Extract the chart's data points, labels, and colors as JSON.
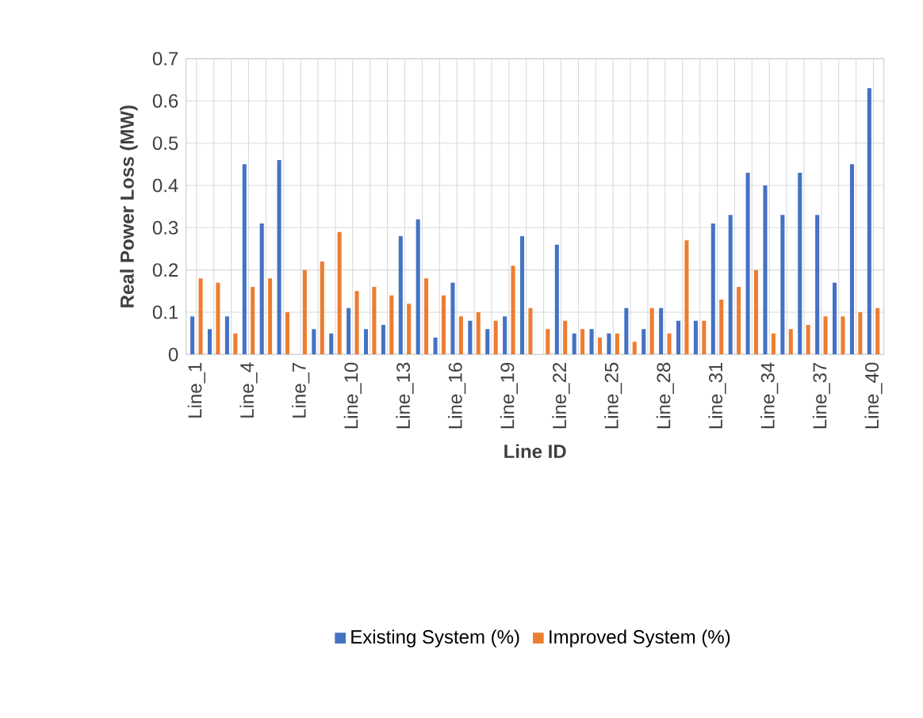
{
  "chart_data": {
    "type": "bar",
    "xlabel": "Line ID",
    "ylabel": "Real Power Loss (MW)",
    "categories": [
      "Line_1",
      null,
      null,
      "Line_4",
      null,
      null,
      "Line_7",
      null,
      null,
      "Line_10",
      null,
      null,
      "Line_13",
      null,
      null,
      "Line_16",
      null,
      null,
      "Line_19",
      null,
      null,
      "Line_22",
      null,
      null,
      "Line_25",
      null,
      null,
      "Line_28",
      null,
      null,
      "Line_31",
      null,
      null,
      "Line_34",
      null,
      null,
      "Line_37",
      null,
      null,
      "Line_40"
    ],
    "series": [
      {
        "name": "Existing System (%)",
        "color": "#4472c4",
        "values": [
          0.09,
          0.06,
          0.09,
          0.45,
          0.31,
          0.46,
          0.0,
          0.06,
          0.05,
          0.11,
          0.06,
          0.07,
          0.28,
          0.32,
          0.04,
          0.17,
          0.08,
          0.06,
          0.09,
          0.28,
          0.0,
          0.26,
          0.05,
          0.06,
          0.05,
          0.11,
          0.06,
          0.11,
          0.08,
          0.08,
          0.31,
          0.33,
          0.43,
          0.4,
          0.33,
          0.43,
          0.33,
          0.17,
          0.45,
          0.63
        ]
      },
      {
        "name": "Improved System (%)",
        "color": "#ed7d31",
        "values": [
          0.18,
          0.17,
          0.05,
          0.16,
          0.18,
          0.1,
          0.2,
          0.22,
          0.29,
          0.15,
          0.16,
          0.14,
          0.12,
          0.18,
          0.14,
          0.09,
          0.1,
          0.08,
          0.21,
          0.11,
          0.06,
          0.08,
          0.06,
          0.04,
          0.05,
          0.03,
          0.11,
          0.05,
          0.27,
          0.08,
          0.13,
          0.16,
          0.2,
          0.05,
          0.06,
          0.07,
          0.09,
          0.09,
          0.1,
          0.11
        ]
      }
    ],
    "ylim": [
      0,
      0.7
    ],
    "yticks": [
      0,
      0.1,
      0.2,
      0.3,
      0.4,
      0.5,
      0.6,
      0.7
    ],
    "grid": true,
    "legend": "bottom"
  }
}
